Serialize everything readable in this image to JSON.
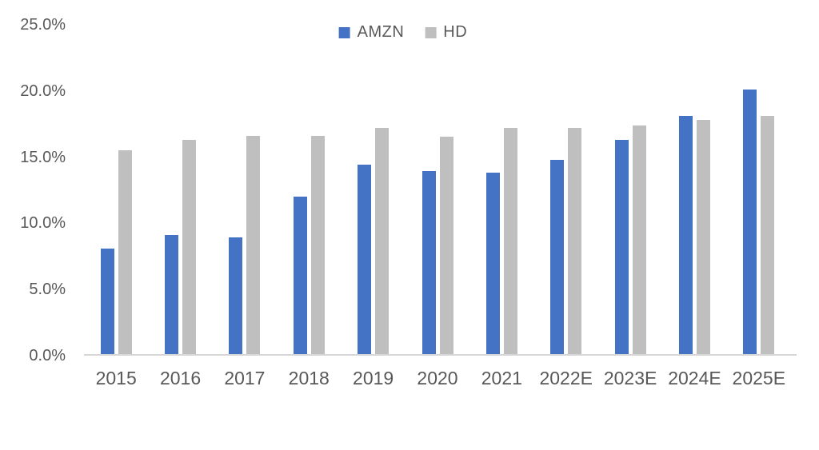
{
  "chart_data": {
    "type": "bar",
    "title": "",
    "xlabel": "",
    "ylabel": "",
    "categories": [
      "2015",
      "2016",
      "2017",
      "2018",
      "2019",
      "2020",
      "2021",
      "2022E",
      "2023E",
      "2024E",
      "2025E"
    ],
    "series": [
      {
        "name": "AMZN",
        "color": "#4472c4",
        "values": [
          8.0,
          9.0,
          8.8,
          11.9,
          14.3,
          13.8,
          13.7,
          14.7,
          16.2,
          18.0,
          20.0
        ]
      },
      {
        "name": "HD",
        "color": "#bfbfbf",
        "values": [
          15.4,
          16.2,
          16.5,
          16.5,
          17.1,
          16.4,
          17.1,
          17.1,
          17.3,
          17.7,
          18.0
        ]
      }
    ],
    "y_axis": {
      "min": 0,
      "max": 25,
      "ticks": [
        {
          "label": "0.0%",
          "value": 0
        },
        {
          "label": "5.0%",
          "value": 5
        },
        {
          "label": "10.0%",
          "value": 10
        },
        {
          "label": "15.0%",
          "value": 15
        },
        {
          "label": "20.0%",
          "value": 20
        },
        {
          "label": "25.0%",
          "value": 25
        }
      ]
    },
    "legend_position": "top-center",
    "grid": false,
    "value_format": "percent"
  },
  "colors": {
    "axis_line": "#d6d6d6",
    "tick_text": "#595959"
  }
}
